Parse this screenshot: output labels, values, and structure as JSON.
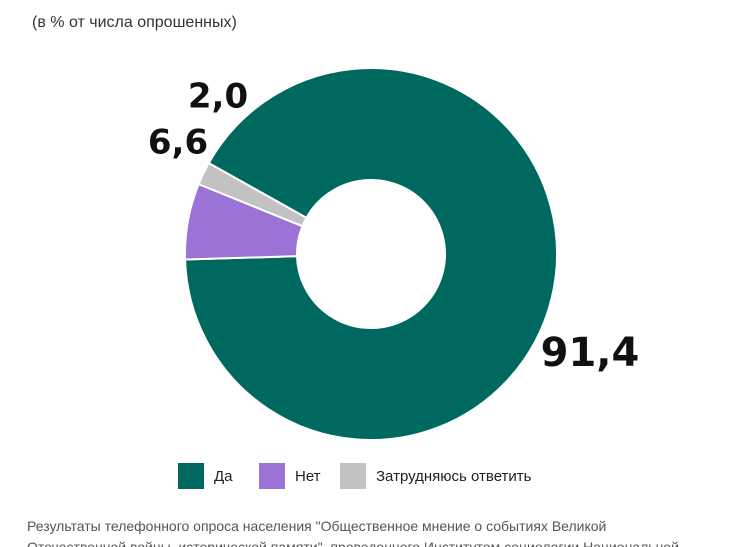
{
  "subtitle": "(в % от числа опрошенных)",
  "chart_data": {
    "type": "pie",
    "variant": "donut",
    "categories": [
      "Да",
      "Нет",
      "Затрудняюсь ответить"
    ],
    "values": [
      91.4,
      6.6,
      2.0
    ],
    "value_labels": [
      "91,4",
      "6,6",
      "2,0"
    ],
    "colors": [
      "#00695f",
      "#9b72d6",
      "#c2c2c2"
    ],
    "legend_placement": "bottom"
  },
  "footnote": {
    "line1": "Результаты телефонного опроса населения \"Общественное мнение о событиях Великой",
    "line2": "Отечественной войны, исторической памяти\", проведенного Институтом социологии Национальной"
  }
}
